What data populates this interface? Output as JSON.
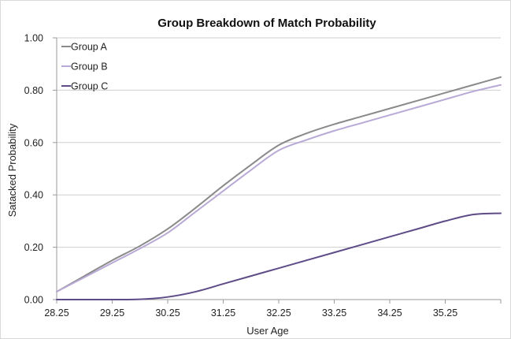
{
  "chart_data": {
    "type": "line",
    "title": "Group Breakdown of Match Probability",
    "xlabel": "User Age",
    "ylabel": "Satacked Probability",
    "xlim": [
      28.25,
      36.25
    ],
    "ylim": [
      0,
      1
    ],
    "x_ticks": [
      "28.25",
      "29.25",
      "30.25",
      "31.25",
      "32.25",
      "33.25",
      "34.25",
      "35.25"
    ],
    "y_ticks": [
      "0.00",
      "0.20",
      "0.40",
      "0.60",
      "0.80",
      "1.00"
    ],
    "grid": true,
    "legend_position": "top-left",
    "x": [
      28.25,
      28.75,
      29.25,
      29.75,
      30.25,
      30.75,
      31.25,
      31.75,
      32.25,
      32.75,
      33.25,
      33.75,
      34.25,
      34.75,
      35.25,
      35.75,
      36.25
    ],
    "series": [
      {
        "name": "Group A",
        "color": "#8a8a8a",
        "values": [
          0.03,
          0.09,
          0.15,
          0.205,
          0.27,
          0.35,
          0.435,
          0.515,
          0.59,
          0.635,
          0.67,
          0.7,
          0.73,
          0.76,
          0.79,
          0.82,
          0.85
        ]
      },
      {
        "name": "Group B",
        "color": "#b8a9d6",
        "values": [
          0.03,
          0.085,
          0.14,
          0.195,
          0.255,
          0.335,
          0.415,
          0.495,
          0.57,
          0.61,
          0.645,
          0.675,
          0.705,
          0.735,
          0.765,
          0.795,
          0.82
        ]
      },
      {
        "name": "Group C",
        "color": "#5e4b87",
        "values": [
          0.0,
          0.0,
          0.0,
          0.001,
          0.01,
          0.03,
          0.06,
          0.09,
          0.12,
          0.15,
          0.18,
          0.21,
          0.24,
          0.27,
          0.3,
          0.325,
          0.33
        ]
      }
    ]
  }
}
